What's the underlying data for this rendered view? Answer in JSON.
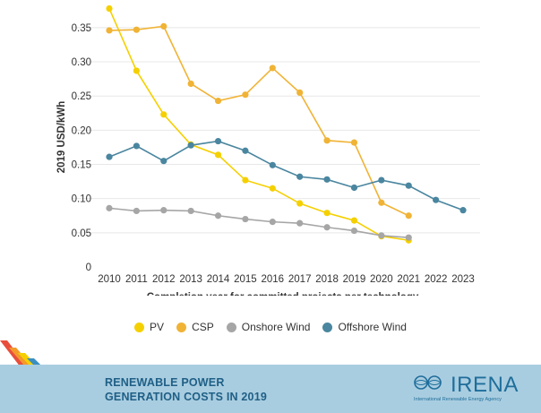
{
  "chart_data": {
    "type": "line",
    "title": "",
    "ylabel": "2019 USD/kWh",
    "xlabel": "Completion year for committed projects per technology",
    "ylim": [
      0,
      0.38
    ],
    "yticks": [
      0,
      0.05,
      0.1,
      0.15,
      0.2,
      0.25,
      0.3,
      0.35
    ],
    "ytick_labels": [
      "0",
      "0.05",
      "0.10",
      "0.15",
      "0.20",
      "0.25",
      "0.30",
      "0.35"
    ],
    "categories": [
      "2010",
      "2011",
      "2012",
      "2013",
      "2014",
      "2015",
      "2016",
      "2017",
      "2018",
      "2019",
      "2020",
      "2021",
      "2022",
      "2023"
    ],
    "grid": true,
    "legend_position": "bottom",
    "series": [
      {
        "name": "PV",
        "color": "#f5d000",
        "values": [
          0.378,
          0.287,
          0.223,
          0.179,
          0.164,
          0.127,
          0.115,
          0.093,
          0.079,
          0.068,
          0.045,
          0.039,
          null,
          null
        ]
      },
      {
        "name": "CSP",
        "color": "#f0b335",
        "values": [
          0.346,
          0.347,
          0.352,
          0.268,
          0.243,
          0.252,
          0.291,
          0.255,
          0.185,
          0.182,
          0.094,
          0.075,
          null,
          null
        ]
      },
      {
        "name": "Onshore Wind",
        "color": "#a6a6a6",
        "values": [
          0.086,
          0.082,
          0.083,
          0.082,
          0.075,
          0.07,
          0.066,
          0.064,
          0.058,
          0.053,
          0.046,
          0.043,
          null,
          null
        ]
      },
      {
        "name": "Offshore Wind",
        "color": "#4a869f",
        "values": [
          0.161,
          0.177,
          0.155,
          0.178,
          0.184,
          0.17,
          0.149,
          0.132,
          0.128,
          0.116,
          0.127,
          0.119,
          0.098,
          0.083
        ]
      }
    ]
  },
  "footer": {
    "title_line1": "RENEWABLE POWER",
    "title_line2": "GENERATION COSTS IN 2019",
    "logo_text": "IRENA",
    "logo_subtext": "International Renewable Energy Agency"
  }
}
